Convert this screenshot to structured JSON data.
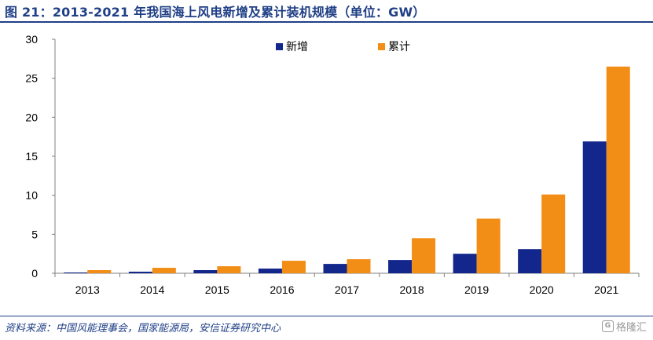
{
  "title": "图 21：2013-2021 年我国海上风电新增及累计装机规模（单位：GW）",
  "source": "资料来源：中国风能理事会，国家能源局，安信证券研究中心",
  "watermark": {
    "icon": "logo-icon",
    "text": "格隆汇"
  },
  "colors": {
    "title": "#1f3f86",
    "new": "#13268c",
    "cumulative": "#f28d16",
    "axis": "#808080"
  },
  "chart_data": {
    "type": "bar",
    "title": "2013-2021 年我国海上风电新增及累计装机规模（单位：GW）",
    "categories": [
      "2013",
      "2014",
      "2015",
      "2016",
      "2017",
      "2018",
      "2019",
      "2020",
      "2021"
    ],
    "series": [
      {
        "name": "新增",
        "color": "#13268c",
        "values": [
          0.1,
          0.2,
          0.4,
          0.6,
          1.2,
          1.7,
          2.5,
          3.1,
          16.9
        ]
      },
      {
        "name": "累计",
        "color": "#f28d16",
        "values": [
          0.4,
          0.7,
          0.9,
          1.6,
          1.8,
          4.5,
          7.0,
          10.1,
          26.5
        ]
      }
    ],
    "ylim": [
      0,
      30
    ],
    "yticks": [
      0,
      5,
      10,
      15,
      20,
      25,
      30
    ],
    "xlabel": "",
    "ylabel": "",
    "grid": false,
    "legend": "top-center"
  }
}
